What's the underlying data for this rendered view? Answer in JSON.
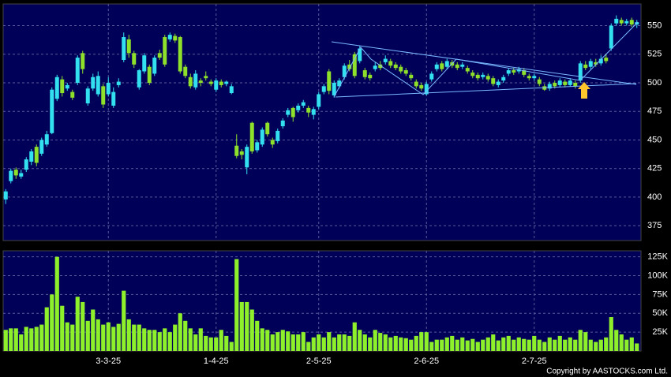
{
  "chart_data": {
    "type": "candlestick",
    "up_color": "#33e0f0",
    "down_color": "#8ee02a",
    "grid": true,
    "ylim": [
      362,
      569
    ],
    "yticks": [
      375,
      400,
      425,
      450,
      475,
      500,
      525,
      550
    ],
    "categories": [
      null,
      null,
      null,
      null,
      null,
      null,
      null,
      null,
      null,
      null,
      null,
      null,
      null,
      null,
      null,
      null,
      null,
      null,
      null,
      null,
      "3-3-25",
      null,
      null,
      null,
      null,
      null,
      null,
      null,
      null,
      null,
      null,
      null,
      null,
      null,
      null,
      null,
      null,
      null,
      null,
      null,
      null,
      "1-4-25",
      null,
      null,
      null,
      null,
      null,
      null,
      null,
      null,
      null,
      null,
      null,
      null,
      null,
      null,
      null,
      null,
      null,
      null,
      null,
      "2-5-25",
      null,
      null,
      null,
      null,
      null,
      null,
      null,
      null,
      null,
      null,
      null,
      null,
      null,
      null,
      null,
      null,
      null,
      null,
      null,
      null,
      "2-6-25",
      null,
      null,
      null,
      null,
      null,
      null,
      null,
      null,
      null,
      null,
      null,
      null,
      null,
      null,
      null,
      null,
      null,
      null,
      null,
      null,
      "2-7-25",
      null,
      null,
      null,
      null,
      null,
      null,
      null,
      null,
      null,
      null,
      null,
      null,
      null,
      null,
      null,
      null,
      null,
      null,
      null,
      null
    ],
    "open": [
      398,
      414,
      424,
      418,
      424,
      431,
      444,
      438,
      446,
      456,
      486,
      503,
      495,
      492,
      500,
      526,
      482,
      495,
      490,
      497,
      490,
      480,
      498,
      520,
      538,
      526,
      496,
      510,
      514,
      508,
      526,
      540,
      538,
      541,
      540,
      514,
      505,
      496,
      502,
      506,
      501,
      494,
      501,
      499,
      491,
      445,
      440,
      426,
      465,
      441,
      446,
      465,
      450,
      449,
      462,
      472,
      478,
      476,
      480,
      478,
      472,
      479,
      492,
      510,
      489,
      497,
      505,
      516,
      525,
      519,
      511,
      507,
      512,
      516,
      518,
      519,
      516,
      514,
      511,
      507,
      501,
      498,
      490,
      503,
      512,
      517,
      514,
      518,
      516,
      514,
      513,
      509,
      507,
      505,
      506,
      504,
      498,
      502,
      508,
      511,
      510,
      511,
      506,
      504,
      503,
      497,
      495,
      500,
      498,
      501,
      498,
      500,
      502,
      516,
      514,
      518,
      517,
      522,
      530,
      552,
      555,
      552,
      555,
      551
    ],
    "high": [
      407,
      425,
      426,
      424,
      435,
      442,
      446,
      452,
      458,
      496,
      507,
      506,
      500,
      494,
      524,
      528,
      497,
      508,
      510,
      499,
      505,
      496,
      504,
      544,
      542,
      528,
      512,
      526,
      516,
      524,
      529,
      542,
      544,
      543,
      541,
      516,
      508,
      511,
      504,
      510,
      503,
      504,
      503,
      502,
      499,
      455,
      442,
      446,
      466,
      450,
      461,
      466,
      452,
      460,
      469,
      478,
      479,
      482,
      485,
      480,
      479,
      492,
      499,
      512,
      502,
      504,
      517,
      520,
      527,
      532,
      513,
      509,
      518,
      519,
      524,
      521,
      518,
      516,
      513,
      509,
      503,
      500,
      501,
      510,
      518,
      519,
      521,
      520,
      518,
      518,
      515,
      511,
      509,
      509,
      508,
      506,
      503,
      507,
      513,
      513,
      514,
      513,
      508,
      508,
      505,
      499,
      501,
      502,
      504,
      503,
      504,
      502,
      519,
      519,
      521,
      521,
      524,
      525,
      552,
      559,
      557,
      556,
      557,
      555
    ],
    "low": [
      394,
      412,
      416,
      416,
      422,
      428,
      427,
      436,
      444,
      455,
      484,
      488,
      493,
      485,
      498,
      508,
      480,
      493,
      488,
      478,
      488,
      478,
      496,
      518,
      522,
      513,
      494,
      508,
      498,
      506,
      520,
      514,
      536,
      535,
      508,
      504,
      495,
      494,
      497,
      502,
      497,
      492,
      496,
      497,
      490,
      434,
      433,
      420,
      438,
      439,
      444,
      453,
      443,
      447,
      460,
      470,
      466,
      474,
      478,
      470,
      468,
      477,
      490,
      490,
      487,
      495,
      503,
      510,
      504,
      517,
      503,
      502,
      510,
      511,
      516,
      513,
      511,
      508,
      506,
      502,
      495,
      493,
      489,
      501,
      510,
      510,
      512,
      513,
      511,
      512,
      508,
      504,
      502,
      503,
      501,
      497,
      496,
      500,
      506,
      507,
      508,
      505,
      502,
      502,
      497,
      493,
      493,
      495,
      496,
      496,
      497,
      495,
      500,
      511,
      512,
      514,
      515,
      517,
      528,
      550,
      550,
      550,
      549,
      548
    ],
    "close": [
      405,
      423,
      419,
      421,
      433,
      440,
      430,
      450,
      455,
      494,
      505,
      491,
      498,
      487,
      522,
      512,
      495,
      505,
      506,
      481,
      500,
      492,
      501,
      540,
      526,
      516,
      511,
      524,
      500,
      522,
      522,
      516,
      542,
      537,
      510,
      506,
      497,
      508,
      500,
      504,
      499,
      502,
      498,
      501,
      497,
      436,
      437,
      444,
      440,
      448,
      459,
      455,
      446,
      458,
      467,
      476,
      470,
      480,
      483,
      474,
      477,
      490,
      497,
      493,
      500,
      502,
      515,
      512,
      506,
      530,
      505,
      504,
      515,
      513,
      521,
      515,
      513,
      510,
      508,
      504,
      497,
      495,
      499,
      508,
      516,
      512,
      519,
      515,
      513,
      516,
      510,
      506,
      504,
      507,
      503,
      499,
      501,
      505,
      511,
      509,
      512,
      507,
      504,
      506,
      499,
      494,
      499,
      497,
      502,
      498,
      502,
      497,
      517,
      513,
      519,
      516,
      521,
      519,
      550,
      556,
      552,
      554,
      551,
      553
    ],
    "volume": {
      "type": "bar",
      "color": "#8ef02a",
      "ylim": [
        0,
        133000
      ],
      "yticks": [
        {
          "value": 25000,
          "label": "25K"
        },
        {
          "value": 50000,
          "label": "50K"
        },
        {
          "value": 75000,
          "label": "75K"
        },
        {
          "value": 100000,
          "label": "100K"
        },
        {
          "value": 125000,
          "label": "125K"
        }
      ],
      "values": [
        28000,
        30000,
        30000,
        22000,
        32000,
        30000,
        32000,
        35000,
        58000,
        75000,
        125000,
        60000,
        38000,
        35000,
        72000,
        65000,
        40000,
        55000,
        42000,
        35000,
        38000,
        32000,
        36000,
        80000,
        42000,
        35000,
        35000,
        30000,
        28000,
        28000,
        25000,
        30000,
        25000,
        35000,
        50000,
        40000,
        30000,
        22000,
        30000,
        20000,
        18000,
        18000,
        28000,
        20000,
        12000,
        122000,
        65000,
        65000,
        55000,
        40000,
        30000,
        28000,
        22000,
        25000,
        28000,
        26000,
        22000,
        22000,
        25000,
        12000,
        18000,
        22000,
        18000,
        25000,
        18000,
        22000,
        22000,
        20000,
        38000,
        28000,
        22000,
        18000,
        28000,
        24000,
        22000,
        18000,
        20000,
        18000,
        17000,
        15000,
        20000,
        25000,
        25000,
        12000,
        15000,
        15000,
        18000,
        20000,
        15000,
        18000,
        14000,
        16000,
        12000,
        15000,
        18000,
        22000,
        14000,
        18000,
        20000,
        15000,
        18000,
        16000,
        15000,
        20000,
        15000,
        12000,
        18000,
        15000,
        20000,
        15000,
        18000,
        15000,
        28000,
        25000,
        15000,
        12000,
        15000,
        18000,
        45000,
        28000,
        22000,
        15000,
        18000,
        10000
      ]
    },
    "copyright": "Copyright by AASTOCKS.com Ltd."
  }
}
